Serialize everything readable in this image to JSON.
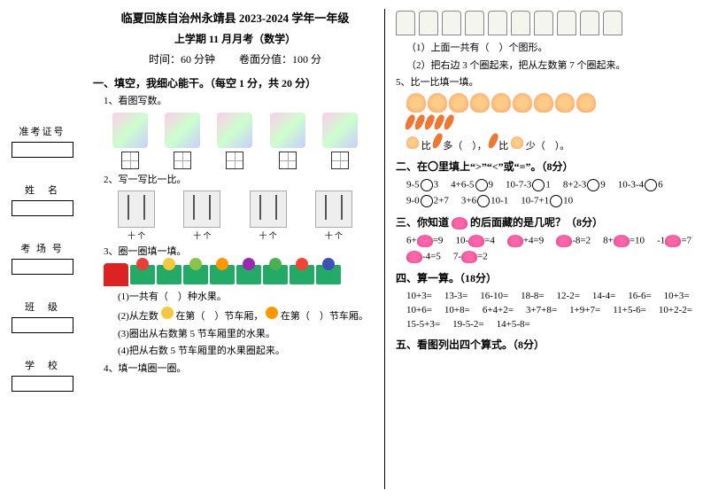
{
  "sidebar": {
    "fields": [
      {
        "label": "准考证号"
      },
      {
        "label": "姓　名"
      },
      {
        "label": "考 场 号"
      },
      {
        "label": "班　级"
      },
      {
        "label": "学　校"
      }
    ]
  },
  "header": {
    "title": "临夏回族自治州永靖县 2023-2024 学年一年级",
    "subtitle": "上学期 11 月月考（数学）",
    "time": "时间：60 分钟",
    "score": "卷面分值：100 分"
  },
  "sec1": {
    "title": "一、填空，我细心能干。（每空 1 分，共 20 分）",
    "q1": "1、看图写数。",
    "q2": "2、写一写比一比。",
    "q2_labels": [
      "十 个",
      "十 个",
      "十 个",
      "十 个"
    ],
    "q3": "3、圈一圈填一填。",
    "q3_1": "(1)一共有（　）种水果。",
    "q3_2_a": "(2)从左数",
    "q3_2_b": "在第（　）节车厢，",
    "q3_2_c": "在第（　）节车厢。",
    "q3_3": "(3)圈出从右数第 5 节车厢里的水果。",
    "q3_4": "(4)把从右数 5 节车厢里的水果圈起来。",
    "q4": "4、填一填圈一圈。"
  },
  "right": {
    "q4_1": "（1）上面一共有（　）个图形。",
    "q4_2": "（2）把右边 3 个圈起来，把从左数第 7 个圈起来。",
    "q5": "5、比一比填一填。",
    "q5_line_a": "比",
    "q5_line_b": "多（　），",
    "q5_line_c": "比",
    "q5_line_d": "少（　）。"
  },
  "sec2": {
    "title": "二、在〇里填上“>”“<”或“=”。（8分）",
    "items": [
      "9-5〇3",
      "4+6-5〇9",
      "10-7-3〇1",
      "8+2-3〇9",
      "10-3-4〇6",
      "9-0〇2+7",
      "3+6〇10-1",
      "10-7+1〇10"
    ]
  },
  "sec3": {
    "title_a": "三、你知道",
    "title_b": "的后面藏的是几呢？（8分）",
    "items": [
      "6+🦋=9",
      "10-🦋=4",
      "🦋+4=9",
      "🦋-8=2",
      "8+🦋=10",
      "-1🦋=7",
      "🦋-4=5",
      "7-🦋=2"
    ]
  },
  "sec4": {
    "title": "四、算一算。（18分）",
    "items": [
      "10+3=",
      "13-3=",
      "16-10=",
      "18-8=",
      "12-2=",
      "14-4=",
      "16-6=",
      "10+3=",
      "10+6=",
      "10+8=",
      "6+4+2=",
      "3+7+8=",
      "1+9+7=",
      "11+5-6=",
      "10+2-2=",
      "15-5+3=",
      "19-5-2=",
      "14+5-8="
    ]
  },
  "sec5": {
    "title": "五、看图列出四个算式。（8分）"
  },
  "colors": {
    "text": "#000000",
    "bg": "#ffffff",
    "fruit1": "#e7403a",
    "fruit2": "#f5c842",
    "fruit3": "#8bc34a",
    "fruit4": "#ff9800",
    "fruit5": "#9c27b0",
    "fruit6": "#4caf50",
    "fruit7": "#f44336",
    "fruit8": "#3f51b5"
  }
}
